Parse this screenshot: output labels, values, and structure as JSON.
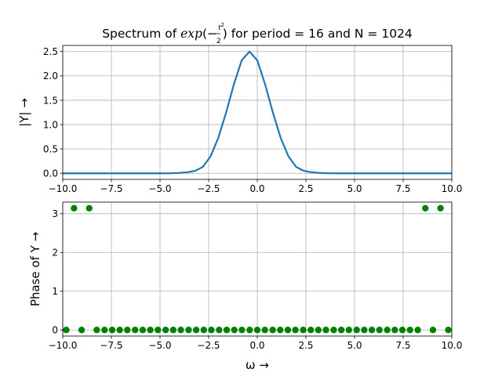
{
  "figure": {
    "title_parts": [
      "Spectrum of ",
      "exp",
      "(−",
      "t",
      "2",
      "2",
      ") for period = 16 and N = 1024"
    ]
  },
  "chart_data": [
    {
      "type": "line",
      "title": "Spectrum of exp(−t²/2) for period = 16 and N = 1024",
      "xlabel": "",
      "ylabel": "|Y| →",
      "xlim": [
        -10,
        10
      ],
      "ylim": [
        -0.125,
        2.625
      ],
      "x_ticks": [
        -10,
        -7.5,
        -5,
        -2.5,
        0,
        2.5,
        5,
        7.5,
        10
      ],
      "x_tick_labels": [
        "−10.0",
        "−7.5",
        "−5.0",
        "−2.5",
        "0.0",
        "2.5",
        "5.0",
        "7.5",
        "10.0"
      ],
      "y_ticks": [
        0,
        0.5,
        1,
        1.5,
        2,
        2.5
      ],
      "y_tick_labels": [
        "0.0",
        "0.5",
        "1.0",
        "1.5",
        "2.0",
        "2.5"
      ],
      "grid": true,
      "color": "#1f77b4",
      "series": [
        {
          "x": [
            -10.0,
            -9.6,
            -9.2,
            -8.8,
            -8.4,
            -8.0,
            -7.6,
            -7.2,
            -6.8,
            -6.4,
            -6.0,
            -5.6,
            -5.2,
            -4.8,
            -4.4,
            -4.0,
            -3.6,
            -3.2,
            -2.8,
            -2.4,
            -2.0,
            -1.6,
            -1.2,
            -0.8,
            -0.4,
            0.0,
            0.4,
            0.8,
            1.2,
            1.6,
            2.0,
            2.4,
            2.8,
            3.2,
            3.6,
            4.0,
            4.4,
            4.8,
            5.2,
            5.6,
            6.0,
            6.4,
            6.8,
            7.2,
            7.6,
            8.0,
            8.4,
            8.8,
            9.2,
            9.6,
            10.0
          ],
          "values": [
            0,
            0,
            0,
            0,
            0,
            0,
            0,
            0,
            0,
            0,
            0,
            0,
            0,
            0,
            0.002,
            0.008,
            0.02,
            0.05,
            0.13,
            0.35,
            0.73,
            1.25,
            1.83,
            2.32,
            2.5,
            2.32,
            1.83,
            1.25,
            0.73,
            0.35,
            0.13,
            0.05,
            0.02,
            0.008,
            0.002,
            0,
            0,
            0,
            0,
            0,
            0,
            0,
            0,
            0,
            0,
            0,
            0,
            0,
            0,
            0,
            0
          ]
        }
      ]
    },
    {
      "type": "scatter",
      "title": "",
      "xlabel": "ω →",
      "ylabel": "Phase of Y →",
      "xlim": [
        -10,
        10
      ],
      "ylim": [
        -0.157,
        3.299
      ],
      "x_ticks": [
        -10,
        -7.5,
        -5,
        -2.5,
        0,
        2.5,
        5,
        7.5,
        10
      ],
      "x_tick_labels": [
        "−10.0",
        "−7.5",
        "−5.0",
        "−2.5",
        "0.0",
        "2.5",
        "5.0",
        "7.5",
        "10.0"
      ],
      "y_ticks": [
        0,
        1,
        2,
        3
      ],
      "y_tick_labels": [
        "0",
        "1",
        "2",
        "3"
      ],
      "grid": true,
      "color": "#008000",
      "series": [
        {
          "x": [
            -9.82,
            -9.42,
            -9.03,
            -8.64,
            -8.25,
            -7.85,
            -7.46,
            -7.07,
            -6.68,
            -6.28,
            -5.89,
            -5.5,
            -5.11,
            -4.71,
            -4.32,
            -3.93,
            -3.53,
            -3.14,
            -2.75,
            -2.36,
            -1.96,
            -1.57,
            -1.18,
            -0.79,
            -0.39,
            0.0,
            0.39,
            0.79,
            1.18,
            1.57,
            1.96,
            2.36,
            2.75,
            3.14,
            3.53,
            3.93,
            4.32,
            4.71,
            5.11,
            5.5,
            5.89,
            6.28,
            6.68,
            7.07,
            7.46,
            7.85,
            8.25,
            8.64,
            9.03,
            9.42,
            9.82
          ],
          "values": [
            0,
            3.14159,
            0,
            3.14159,
            0,
            0,
            0,
            0,
            0,
            0,
            0,
            0,
            0,
            0,
            0,
            0,
            0,
            0,
            0,
            0,
            0,
            0,
            0,
            0,
            0,
            0,
            0,
            0,
            0,
            0,
            0,
            0,
            0,
            0,
            0,
            0,
            0,
            0,
            0,
            0,
            0,
            0,
            0,
            0,
            0,
            0,
            0,
            3.14159,
            0,
            3.14159,
            0
          ]
        }
      ]
    }
  ]
}
